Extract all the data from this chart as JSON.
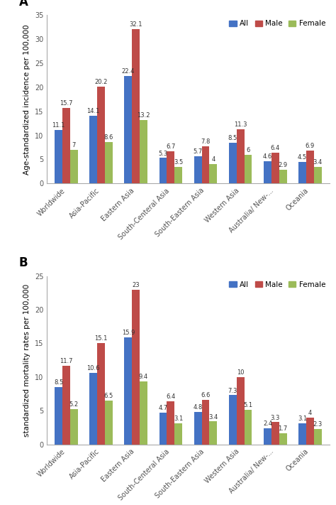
{
  "categories": [
    "Worldwide",
    "Asia-Pacific",
    "Eastern Asia",
    "South-Centeral Asia",
    "South-Eastern Asia",
    "Western Asia",
    "Australia/ New-...",
    "Oceania"
  ],
  "panel_A": {
    "label": "A",
    "ylabel": "Age-standardized incidence per 100,000",
    "ylim": [
      0,
      35
    ],
    "yticks": [
      0,
      5,
      10,
      15,
      20,
      25,
      30,
      35
    ],
    "all": [
      11.1,
      14.1,
      22.4,
      5.3,
      5.7,
      8.5,
      4.6,
      4.5
    ],
    "male": [
      15.7,
      20.2,
      32.1,
      6.7,
      7.8,
      11.3,
      6.4,
      6.9
    ],
    "female": [
      7.0,
      8.6,
      13.2,
      3.5,
      4.0,
      6.0,
      2.9,
      3.4
    ],
    "all_labels": [
      "11.1",
      "14.1",
      "22.4",
      "5.3",
      "5.7",
      "8.5",
      "4.6",
      "4.5"
    ],
    "male_labels": [
      "15.7",
      "20.2",
      "32.1",
      "6.7",
      "7.8",
      "11.3",
      "6.4",
      "6.9"
    ],
    "female_labels": [
      "7",
      "8.6",
      "13.2",
      "3.5",
      "4",
      "6",
      "2.9",
      "3.4"
    ]
  },
  "panel_B": {
    "label": "B",
    "ylabel": "standardized mortality rates per 100,000",
    "ylim": [
      0,
      25
    ],
    "yticks": [
      0,
      5,
      10,
      15,
      20,
      25
    ],
    "all": [
      8.5,
      10.6,
      15.9,
      4.7,
      4.8,
      7.3,
      2.4,
      3.1
    ],
    "male": [
      11.7,
      15.1,
      23.0,
      6.4,
      6.6,
      10.0,
      3.3,
      4.0
    ],
    "female": [
      5.2,
      6.5,
      9.4,
      3.1,
      3.4,
      5.1,
      1.7,
      2.3
    ],
    "all_labels": [
      "8.5",
      "10.6",
      "15.9",
      "4.7",
      "4.8",
      "7.3",
      "2.4",
      "3.1"
    ],
    "male_labels": [
      "11.7",
      "15.1",
      "23",
      "6.4",
      "6.6",
      "10",
      "3.3",
      "4"
    ],
    "female_labels": [
      "5.2",
      "6.5",
      "9.4",
      "3.1",
      "3.4",
      "5.1",
      "1.7",
      "2.3"
    ]
  },
  "colors": {
    "all": "#4472C4",
    "male": "#BE4B48",
    "female": "#9BBB59"
  },
  "bar_width": 0.22,
  "label_fontsize": 7.5,
  "tick_fontsize": 7.0,
  "legend_fontsize": 7.5,
  "annotation_fontsize": 6.0
}
